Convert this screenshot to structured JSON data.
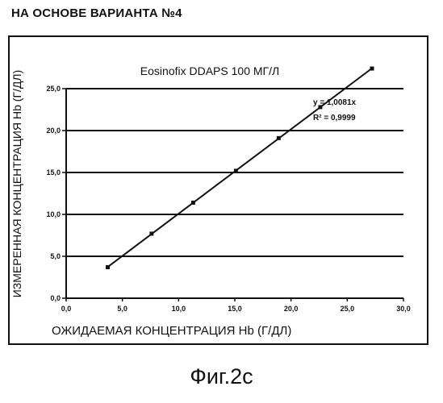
{
  "page": {
    "header": "НА ОСНОВЕ ВАРИАНТА №4",
    "caption": "Фиг.2с"
  },
  "chart_data": {
    "type": "scatter",
    "title": "Eosinofix DDAPS 100 МГ/Л",
    "xlabel": "ОЖИДАЕМАЯ КОНЦЕНТРАЦИЯ Hb (Г/ДЛ)",
    "ylabel": "ИЗМЕРЕННАЯ КОНЦЕНТРАЦИЯ Hb (Г/ДЛ)",
    "xlim": [
      0,
      30
    ],
    "ylim": [
      0,
      25
    ],
    "x_ticks": [
      "0,0",
      "5,0",
      "10,0",
      "15,0",
      "20,0",
      "25,0",
      "30,0"
    ],
    "y_ticks": [
      "0,0",
      "5,0",
      "10,0",
      "15,0",
      "20,0",
      "25,0"
    ],
    "grid": "horizontal",
    "trendline": {
      "equation": "y = 1,0081x",
      "r_squared": "R² = 0,9999",
      "x_range": [
        3.7,
        27.2
      ]
    },
    "series": [
      {
        "x": [
          3.7,
          7.6,
          11.3,
          15.1,
          18.9,
          22.6,
          27.2
        ],
        "y": [
          3.7,
          7.7,
          11.4,
          15.2,
          19.1,
          22.8,
          27.4
        ]
      }
    ]
  }
}
